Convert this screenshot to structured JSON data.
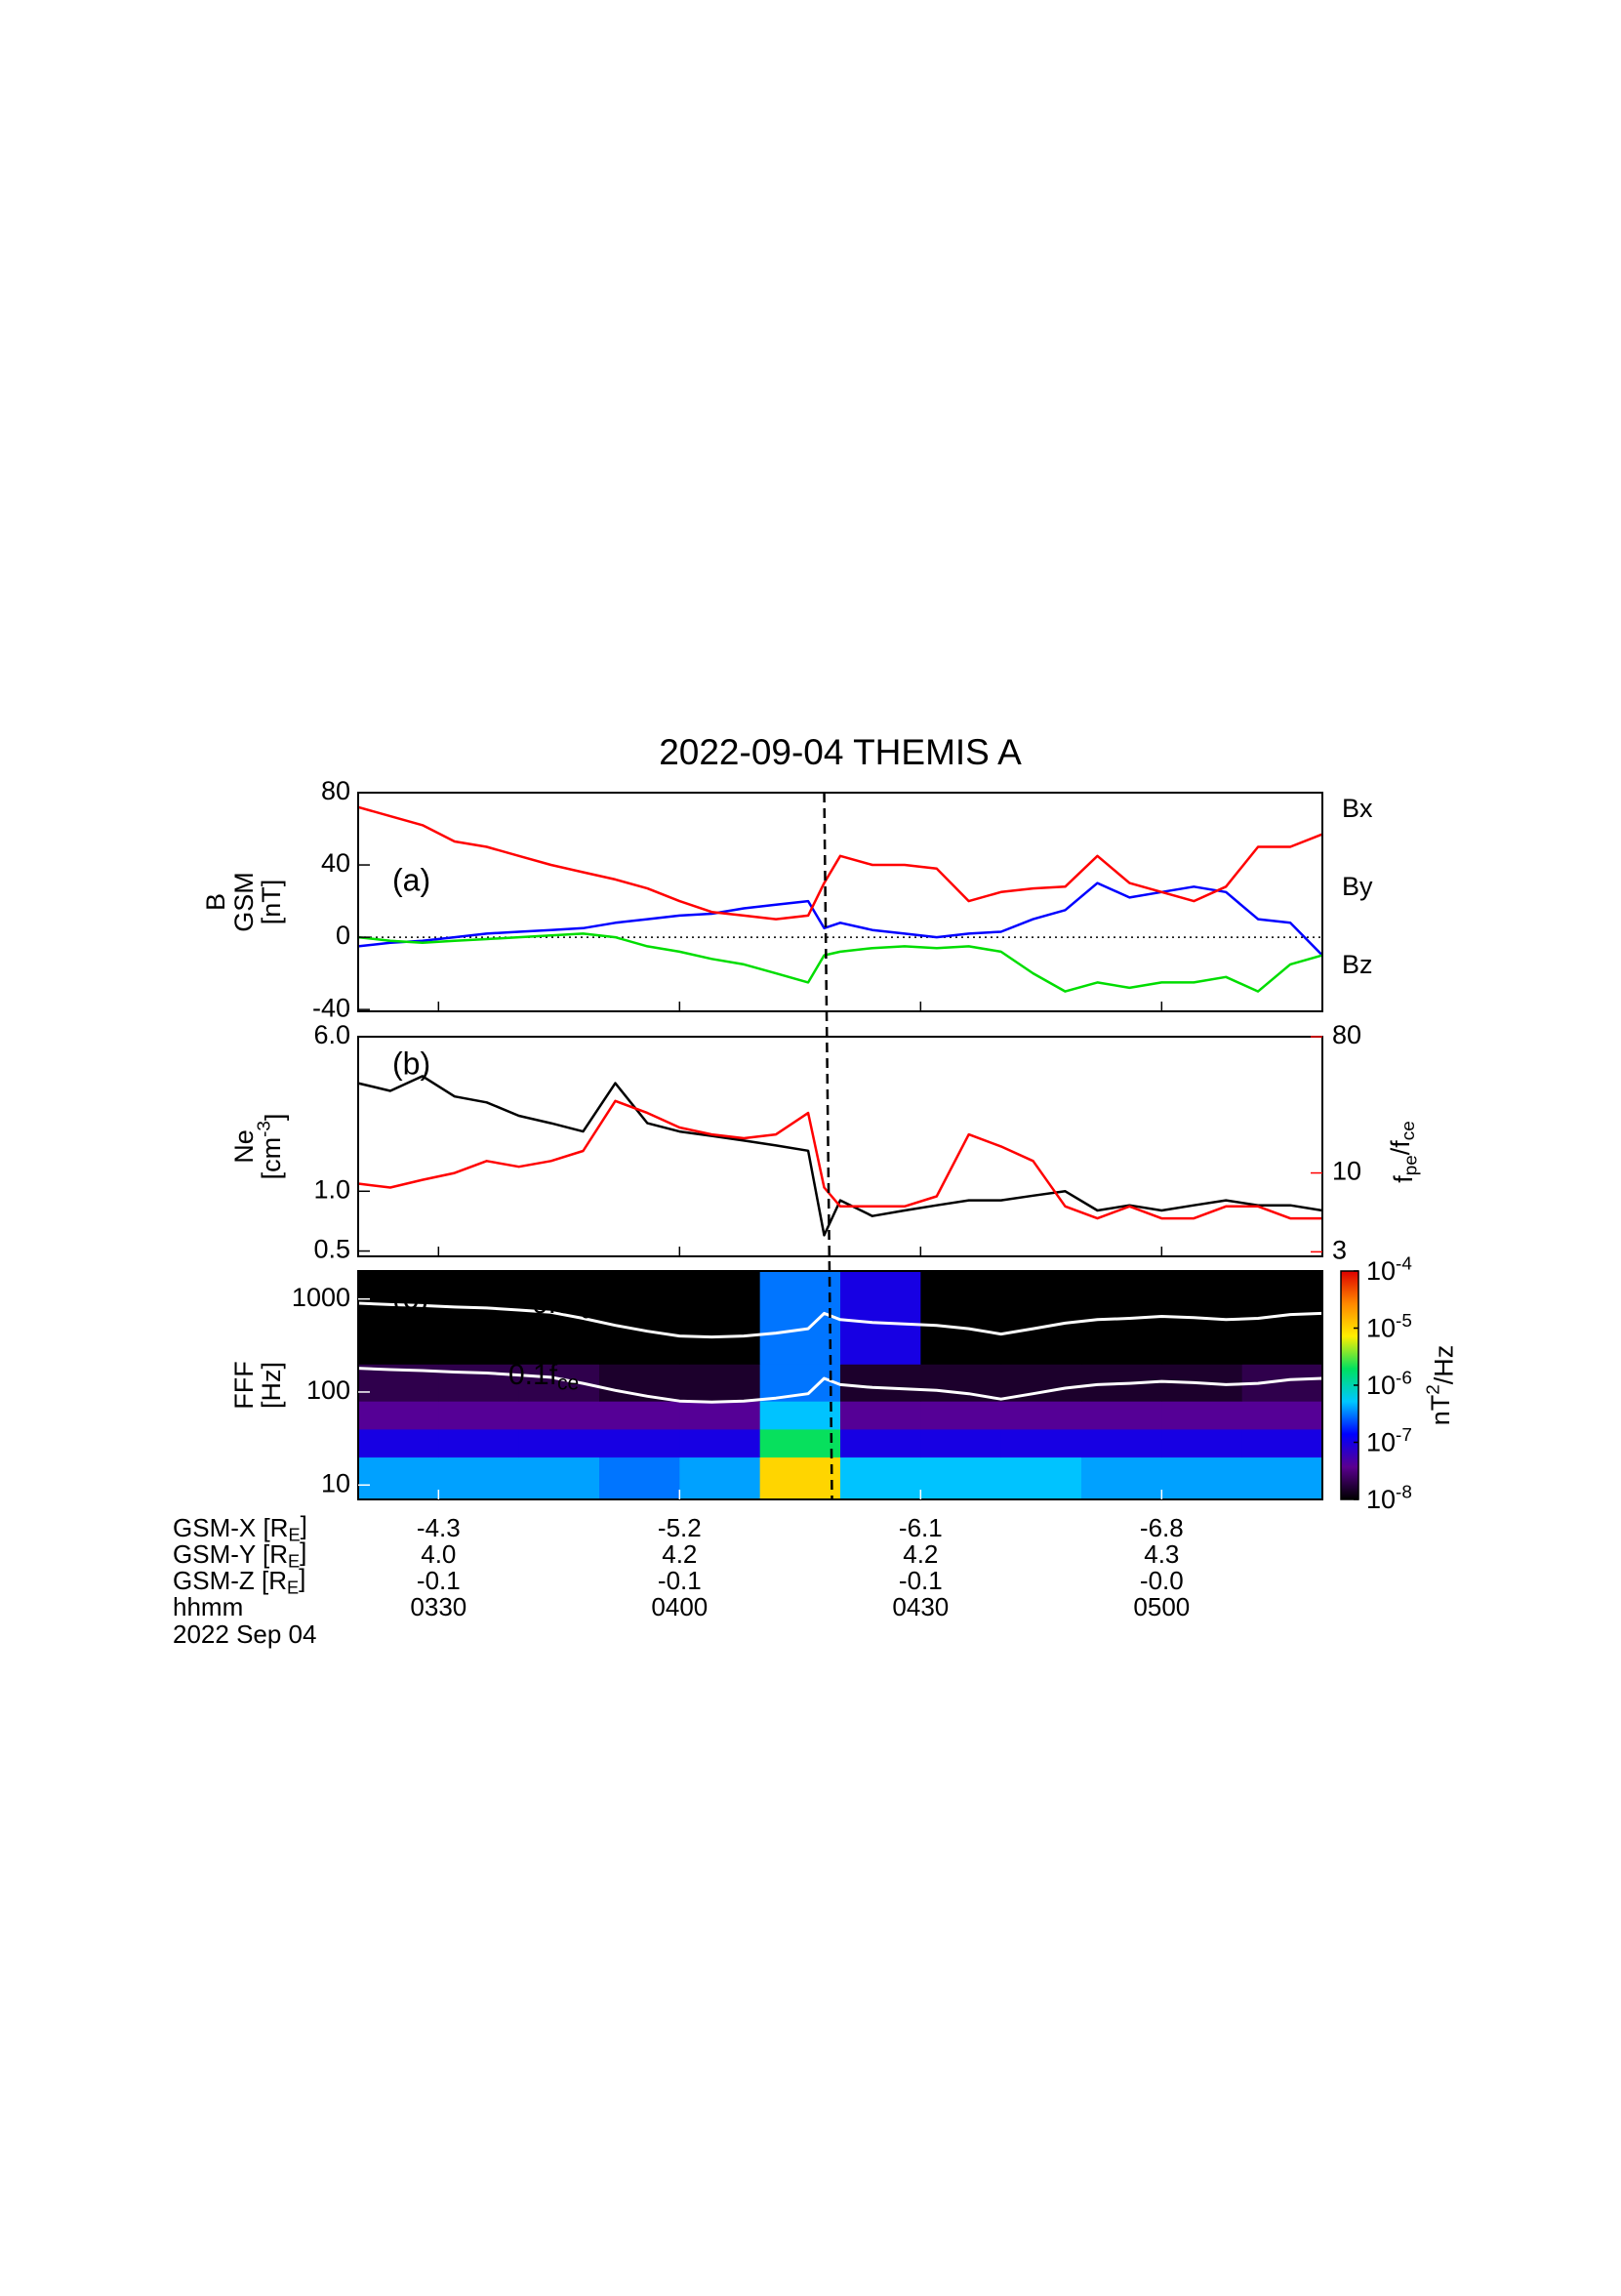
{
  "chart_data": [
    {
      "type": "line",
      "title": "2022-09-04 THEMIS A",
      "panel_label": "(a)",
      "ylabel": [
        [
          {
            "t": "B"
          }
        ],
        [
          {
            "t": "GSM"
          }
        ],
        [
          {
            "t": "[nT]"
          }
        ]
      ],
      "x": [
        200,
        204,
        208,
        212,
        216,
        220,
        224,
        228,
        232,
        236,
        240,
        244,
        248,
        252,
        256,
        258,
        260,
        264,
        268,
        272,
        276,
        280,
        284,
        288,
        292,
        296,
        300,
        304,
        308,
        312,
        316,
        320
      ],
      "xlim": [
        200,
        320
      ],
      "ylim": [
        -41,
        80
      ],
      "yticks": [
        -40,
        0,
        40,
        80
      ],
      "hline": 0,
      "vline": 258,
      "series": [
        {
          "name": "Bx",
          "color": "#0000ff",
          "values": [
            -5,
            -3,
            -2,
            0,
            2,
            3,
            4,
            5,
            8,
            10,
            12,
            13,
            16,
            18,
            20,
            5,
            8,
            4,
            2,
            0,
            2,
            3,
            10,
            15,
            30,
            22,
            25,
            28,
            25,
            10,
            8,
            -10
          ]
        },
        {
          "name": "By",
          "color": "#00dd00",
          "values": [
            0,
            -2,
            -3,
            -2,
            -1,
            0,
            1,
            2,
            0,
            -5,
            -8,
            -12,
            -15,
            -20,
            -25,
            -10,
            -8,
            -6,
            -5,
            -6,
            -5,
            -8,
            -20,
            -30,
            -25,
            -28,
            -25,
            -25,
            -22,
            -30,
            -15,
            -10
          ]
        },
        {
          "name": "Bz",
          "color": "#ff0000",
          "values": [
            72,
            67,
            62,
            53,
            50,
            45,
            40,
            36,
            32,
            27,
            20,
            14,
            12,
            10,
            12,
            30,
            45,
            40,
            40,
            38,
            20,
            25,
            27,
            28,
            45,
            30,
            25,
            20,
            28,
            50,
            50,
            57
          ]
        }
      ]
    },
    {
      "type": "line",
      "panel_label": "(b)",
      "log_scale": true,
      "ylabel": [
        [
          {
            "t": "Ne"
          }
        ],
        [
          {
            "t": "[cm"
          },
          {
            "t": "-3",
            "pos": "sup"
          },
          {
            "t": "]"
          }
        ]
      ],
      "y2label": [
        {
          "t": "f"
        },
        {
          "t": "pe",
          "pos": "sub"
        },
        {
          "t": "/f"
        },
        {
          "t": "ce",
          "pos": "sub"
        }
      ],
      "y2color": "#ff0000",
      "x": [
        200,
        204,
        208,
        212,
        216,
        220,
        224,
        228,
        232,
        236,
        240,
        244,
        248,
        252,
        256,
        258,
        260,
        264,
        268,
        272,
        276,
        280,
        284,
        288,
        292,
        296,
        300,
        304,
        308,
        312,
        316,
        320
      ],
      "xlim": [
        200,
        320
      ],
      "ylim": [
        0.47,
        6.0
      ],
      "yticks": [
        0.5,
        {
          "value": 1,
          "label": "1.0"
        },
        {
          "value": 6,
          "label": "6.0"
        }
      ],
      "y2lim": [
        2.8,
        80
      ],
      "y2ticks": [
        3,
        10,
        80
      ],
      "series": [
        {
          "name": "Ne",
          "color": "#000000",
          "values": [
            3.5,
            3.2,
            3.8,
            3.0,
            2.8,
            2.4,
            2.2,
            2.0,
            3.5,
            2.2,
            2.0,
            1.9,
            1.8,
            1.7,
            1.6,
            0.6,
            0.9,
            0.75,
            0.8,
            0.85,
            0.9,
            0.9,
            0.95,
            1.0,
            0.8,
            0.85,
            0.8,
            0.85,
            0.9,
            0.85,
            0.85,
            0.8
          ]
        },
        {
          "name": "fpe/fce",
          "color": "#ff0000",
          "axis": "y2",
          "values": [
            8.5,
            8,
            9,
            10,
            12,
            11,
            12,
            14,
            30,
            25,
            20,
            18,
            17,
            18,
            25,
            8,
            6,
            6,
            6,
            7,
            18,
            15,
            12,
            6,
            5,
            6,
            5,
            5,
            6,
            6,
            5,
            5
          ]
        }
      ]
    },
    {
      "type": "spectrogram",
      "panel_label": "(c)",
      "log_scale": true,
      "ylabel": [
        [
          {
            "t": "FFF"
          }
        ],
        [
          {
            "t": "[Hz]"
          }
        ]
      ],
      "xlim": [
        200,
        320
      ],
      "ylim": [
        7,
        2000
      ],
      "yticks": [
        10,
        100,
        1000
      ],
      "xticks": [
        {
          "value": 210,
          "label": "0330"
        },
        {
          "value": 240,
          "label": "0400"
        },
        {
          "value": 270,
          "label": "0430"
        },
        {
          "value": 300,
          "label": "0500"
        }
      ],
      "time_edges": [
        200,
        210,
        220,
        230,
        240,
        250,
        260,
        270,
        280,
        290,
        300,
        310,
        320
      ],
      "freq_edges": [
        7,
        20,
        40,
        80,
        200,
        2000
      ],
      "z": [
        [
          4e-07,
          4e-07,
          4e-07,
          3e-07,
          4e-07,
          1e-05,
          5e-07,
          5e-07,
          5e-07,
          4e-07,
          4e-07,
          4e-07
        ],
        [
          1e-07,
          1e-07,
          1e-07,
          1e-07,
          1e-07,
          2e-06,
          1e-07,
          1e-07,
          1e-07,
          1e-07,
          1e-07,
          1e-07
        ],
        [
          4e-08,
          4e-08,
          4e-08,
          4e-08,
          4e-08,
          5e-07,
          4e-08,
          4e-08,
          4e-08,
          4e-08,
          4e-08,
          4e-08
        ],
        [
          2e-08,
          2e-08,
          2e-08,
          1.5e-08,
          1.5e-08,
          3e-07,
          1.5e-08,
          1.5e-08,
          1.5e-08,
          1.5e-08,
          1.5e-08,
          2e-08
        ],
        [
          1e-08,
          1e-08,
          1e-08,
          1e-08,
          1e-08,
          3e-07,
          1e-07,
          1e-08,
          1e-08,
          1e-08,
          1e-08,
          1e-08
        ]
      ],
      "zlim": [
        1e-08,
        0.0001
      ],
      "zticks": [
        {
          "value": 0.0001,
          "label": "10",
          "sup": "-4"
        },
        {
          "value": 1e-05,
          "label": "10",
          "sup": "-5"
        },
        {
          "value": 1e-06,
          "label": "10",
          "sup": "-6"
        },
        {
          "value": 1e-07,
          "label": "10",
          "sup": "-7"
        },
        {
          "value": 1e-08,
          "label": "10",
          "sup": "-8"
        }
      ],
      "zlabel": [
        {
          "t": "nT"
        },
        {
          "t": "2",
          "pos": "sup"
        },
        {
          "t": "/Hz"
        }
      ],
      "colormap": [
        "#000000",
        "#5a0090",
        "#0000ff",
        "#00c8ff",
        "#00e060",
        "#ffee00",
        "#ff8800",
        "#dd0000"
      ],
      "x": [
        200,
        204,
        208,
        212,
        216,
        220,
        224,
        228,
        232,
        236,
        240,
        244,
        248,
        252,
        256,
        258,
        260,
        264,
        268,
        272,
        276,
        280,
        284,
        288,
        292,
        296,
        300,
        304,
        308,
        312,
        316,
        320
      ],
      "series": [
        {
          "name": [
            {
              "t": "0.5f"
            },
            {
              "t": "ce",
              "pos": "sub"
            }
          ],
          "color": "#ffffff",
          "values": [
            900,
            870,
            850,
            820,
            800,
            760,
            720,
            620,
            520,
            450,
            400,
            390,
            400,
            430,
            480,
            700,
            600,
            560,
            540,
            520,
            480,
            420,
            480,
            550,
            600,
            620,
            650,
            630,
            600,
            620,
            680,
            700
          ]
        },
        {
          "name": [
            {
              "t": "0.1f"
            },
            {
              "t": "ce",
              "pos": "sub"
            }
          ],
          "color": "#ffffff",
          "values": [
            180,
            174,
            170,
            164,
            160,
            152,
            144,
            124,
            104,
            90,
            80,
            78,
            80,
            86,
            96,
            140,
            120,
            112,
            108,
            104,
            96,
            84,
            96,
            110,
            120,
            124,
            130,
            126,
            120,
            124,
            136,
            140
          ]
        }
      ],
      "ephemeris": [
        {
          "label": [
            {
              "t": "GSM-X [R"
            },
            {
              "t": "E",
              "pos": "sub"
            },
            {
              "t": "]"
            }
          ],
          "values": [
            "-4.3",
            "-5.2",
            "-6.1",
            "-6.8"
          ]
        },
        {
          "label": [
            {
              "t": "GSM-Y [R"
            },
            {
              "t": "E",
              "pos": "sub"
            },
            {
              "t": "]"
            }
          ],
          "values": [
            "4.0",
            "4.2",
            "4.2",
            "4.3"
          ]
        },
        {
          "label": [
            {
              "t": "GSM-Z [R"
            },
            {
              "t": "E",
              "pos": "sub"
            },
            {
              "t": "]"
            }
          ],
          "values": [
            "-0.1",
            "-0.1",
            "-0.1",
            "-0.0"
          ]
        },
        {
          "label": [
            {
              "t": "hhmm"
            }
          ]
        }
      ],
      "date": "2022 Sep 04"
    }
  ]
}
